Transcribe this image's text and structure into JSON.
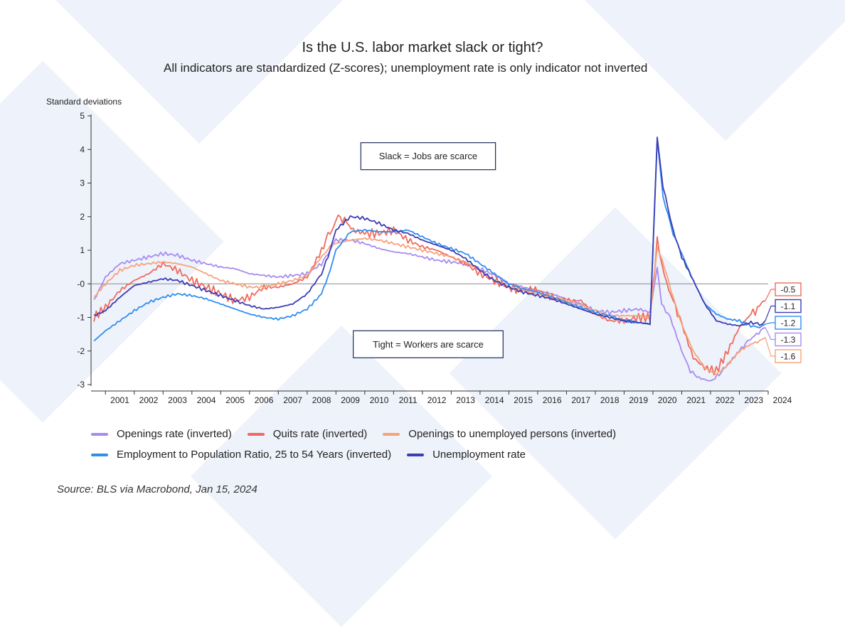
{
  "title": "Is the U.S. labor market slack or tight?",
  "subtitle": "All indicators are standardized (Z-scores); unemployment rate is only indicator not inverted",
  "source": "Source: BLS via Macrobond, Jan 15, 2024",
  "chart_data": {
    "type": "line",
    "ylabel": "Standard deviations",
    "ylim": [
      -3,
      5
    ],
    "xlim": [
      2000.5,
      2024
    ],
    "yticks": [
      5,
      4,
      3,
      2,
      1,
      0,
      -1,
      -2,
      -3
    ],
    "ytick_labels": [
      "5",
      "4",
      "3",
      "2",
      "1",
      "-0",
      "-1",
      "-2",
      "-3"
    ],
    "xtick_labels": [
      "2001",
      "2002",
      "2003",
      "2004",
      "2005",
      "2006",
      "2007",
      "2008",
      "2009",
      "2010",
      "2011",
      "2012",
      "2013",
      "2014",
      "2015",
      "2016",
      "2017",
      "2018",
      "2019",
      "2020",
      "2021",
      "2022",
      "2023",
      "2024"
    ],
    "annotations": [
      {
        "text": "Slack = Jobs are scarce",
        "x": 2012.2,
        "y": 3.8
      },
      {
        "text": "Tight = Workers are scarce",
        "x": 2012.2,
        "y": -1.8
      }
    ],
    "zero_line": true,
    "series": [
      {
        "name": "Openings rate (inverted)",
        "color": "#a78bf0",
        "end_label": "-1.3",
        "end_value": -1.3,
        "points": [
          [
            2000.6,
            -0.5
          ],
          [
            2001.0,
            0.2
          ],
          [
            2001.5,
            0.6
          ],
          [
            2002.0,
            0.7
          ],
          [
            2002.5,
            0.8
          ],
          [
            2003.0,
            0.9
          ],
          [
            2003.5,
            0.85
          ],
          [
            2004.0,
            0.7
          ],
          [
            2004.5,
            0.6
          ],
          [
            2005.0,
            0.5
          ],
          [
            2005.5,
            0.45
          ],
          [
            2006.0,
            0.3
          ],
          [
            2006.5,
            0.25
          ],
          [
            2007.0,
            0.2
          ],
          [
            2007.5,
            0.25
          ],
          [
            2008.0,
            0.3
          ],
          [
            2008.5,
            0.6
          ],
          [
            2008.8,
            1.0
          ],
          [
            2009.0,
            1.3
          ],
          [
            2009.5,
            1.3
          ],
          [
            2010.0,
            1.2
          ],
          [
            2010.5,
            1.05
          ],
          [
            2011.0,
            0.95
          ],
          [
            2011.5,
            0.9
          ],
          [
            2012.0,
            0.8
          ],
          [
            2012.5,
            0.7
          ],
          [
            2013.0,
            0.65
          ],
          [
            2013.5,
            0.6
          ],
          [
            2014.0,
            0.45
          ],
          [
            2014.5,
            0.25
          ],
          [
            2015.0,
            0.0
          ],
          [
            2015.5,
            -0.1
          ],
          [
            2016.0,
            -0.2
          ],
          [
            2016.5,
            -0.3
          ],
          [
            2017.0,
            -0.45
          ],
          [
            2017.5,
            -0.6
          ],
          [
            2018.0,
            -0.8
          ],
          [
            2018.5,
            -0.85
          ],
          [
            2019.0,
            -0.8
          ],
          [
            2019.5,
            -0.75
          ],
          [
            2019.9,
            -0.85
          ],
          [
            2020.15,
            0.5
          ],
          [
            2020.3,
            -0.6
          ],
          [
            2020.6,
            -1.0
          ],
          [
            2021.0,
            -2.0
          ],
          [
            2021.3,
            -2.6
          ],
          [
            2021.6,
            -2.8
          ],
          [
            2022.0,
            -2.9
          ],
          [
            2022.3,
            -2.7
          ],
          [
            2022.6,
            -2.4
          ],
          [
            2023.0,
            -2.0
          ],
          [
            2023.3,
            -1.7
          ],
          [
            2023.6,
            -1.5
          ],
          [
            2023.9,
            -1.3
          ]
        ]
      },
      {
        "name": "Quits rate (inverted)",
        "color": "#ee6a5e",
        "end_label": "-0.5",
        "end_value": -0.5,
        "points": [
          [
            2000.6,
            -1.0
          ],
          [
            2001.0,
            -0.7
          ],
          [
            2001.5,
            -0.2
          ],
          [
            2002.0,
            0.1
          ],
          [
            2002.5,
            0.3
          ],
          [
            2003.0,
            0.6
          ],
          [
            2003.5,
            0.4
          ],
          [
            2004.0,
            0.1
          ],
          [
            2004.5,
            -0.1
          ],
          [
            2005.0,
            -0.3
          ],
          [
            2005.5,
            -0.5
          ],
          [
            2006.0,
            -0.4
          ],
          [
            2006.5,
            -0.1
          ],
          [
            2007.0,
            -0.1
          ],
          [
            2007.5,
            0.0
          ],
          [
            2008.0,
            0.2
          ],
          [
            2008.5,
            1.0
          ],
          [
            2008.8,
            1.6
          ],
          [
            2009.0,
            2.0
          ],
          [
            2009.3,
            1.9
          ],
          [
            2009.6,
            1.6
          ],
          [
            2010.0,
            1.5
          ],
          [
            2010.5,
            1.5
          ],
          [
            2011.0,
            1.6
          ],
          [
            2011.5,
            1.3
          ],
          [
            2012.0,
            1.1
          ],
          [
            2012.5,
            1.0
          ],
          [
            2013.0,
            0.8
          ],
          [
            2013.5,
            0.6
          ],
          [
            2014.0,
            0.3
          ],
          [
            2014.5,
            0.1
          ],
          [
            2015.0,
            -0.1
          ],
          [
            2015.5,
            -0.2
          ],
          [
            2016.0,
            -0.2
          ],
          [
            2016.5,
            -0.4
          ],
          [
            2017.0,
            -0.5
          ],
          [
            2017.5,
            -0.5
          ],
          [
            2018.0,
            -0.9
          ],
          [
            2018.5,
            -1.1
          ],
          [
            2019.0,
            -1.1
          ],
          [
            2019.5,
            -1.0
          ],
          [
            2019.9,
            -1.0
          ],
          [
            2020.15,
            1.3
          ],
          [
            2020.4,
            0.2
          ],
          [
            2020.7,
            -0.5
          ],
          [
            2021.0,
            -1.2
          ],
          [
            2021.4,
            -2.2
          ],
          [
            2021.8,
            -2.5
          ],
          [
            2022.2,
            -2.6
          ],
          [
            2022.6,
            -2.0
          ],
          [
            2023.0,
            -1.3
          ],
          [
            2023.4,
            -0.9
          ],
          [
            2023.7,
            -0.7
          ],
          [
            2023.9,
            -0.5
          ]
        ]
      },
      {
        "name": "Openings to unemployed persons (inverted)",
        "color": "#f7a27a",
        "end_label": "-1.6",
        "end_value": -1.6,
        "points": [
          [
            2000.6,
            -0.4
          ],
          [
            2001.0,
            0.0
          ],
          [
            2001.5,
            0.4
          ],
          [
            2002.0,
            0.55
          ],
          [
            2002.5,
            0.6
          ],
          [
            2003.0,
            0.65
          ],
          [
            2003.5,
            0.6
          ],
          [
            2004.0,
            0.5
          ],
          [
            2004.5,
            0.3
          ],
          [
            2005.0,
            0.1
          ],
          [
            2005.5,
            0.0
          ],
          [
            2006.0,
            -0.1
          ],
          [
            2006.5,
            -0.1
          ],
          [
            2007.0,
            0.0
          ],
          [
            2007.5,
            0.1
          ],
          [
            2008.0,
            0.25
          ],
          [
            2008.5,
            0.8
          ],
          [
            2008.8,
            1.1
          ],
          [
            2009.0,
            1.2
          ],
          [
            2009.5,
            1.3
          ],
          [
            2010.0,
            1.35
          ],
          [
            2010.5,
            1.3
          ],
          [
            2011.0,
            1.2
          ],
          [
            2011.5,
            1.1
          ],
          [
            2012.0,
            1.0
          ],
          [
            2012.5,
            0.9
          ],
          [
            2013.0,
            0.8
          ],
          [
            2013.5,
            0.65
          ],
          [
            2014.0,
            0.4
          ],
          [
            2014.5,
            0.1
          ],
          [
            2015.0,
            -0.1
          ],
          [
            2015.5,
            -0.2
          ],
          [
            2016.0,
            -0.3
          ],
          [
            2016.5,
            -0.4
          ],
          [
            2017.0,
            -0.5
          ],
          [
            2017.5,
            -0.65
          ],
          [
            2018.0,
            -0.8
          ],
          [
            2018.5,
            -0.95
          ],
          [
            2019.0,
            -0.95
          ],
          [
            2019.5,
            -0.95
          ],
          [
            2019.9,
            -1.0
          ],
          [
            2020.15,
            1.1
          ],
          [
            2020.4,
            0.5
          ],
          [
            2020.7,
            -0.4
          ],
          [
            2021.0,
            -1.2
          ],
          [
            2021.4,
            -2.0
          ],
          [
            2021.8,
            -2.5
          ],
          [
            2022.2,
            -2.7
          ],
          [
            2022.6,
            -2.4
          ],
          [
            2023.0,
            -2.0
          ],
          [
            2023.4,
            -1.8
          ],
          [
            2023.7,
            -1.7
          ],
          [
            2023.9,
            -1.6
          ]
        ]
      },
      {
        "name": "Employment to Population Ratio, 25 to 54 Years (inverted)",
        "color": "#2f8ef0",
        "end_label": "-1.2",
        "end_value": -1.2,
        "points": [
          [
            2000.6,
            -1.7
          ],
          [
            2001.0,
            -1.4
          ],
          [
            2001.5,
            -1.1
          ],
          [
            2002.0,
            -0.8
          ],
          [
            2002.5,
            -0.55
          ],
          [
            2003.0,
            -0.4
          ],
          [
            2003.5,
            -0.3
          ],
          [
            2004.0,
            -0.35
          ],
          [
            2004.5,
            -0.45
          ],
          [
            2005.0,
            -0.6
          ],
          [
            2005.5,
            -0.75
          ],
          [
            2006.0,
            -0.9
          ],
          [
            2006.5,
            -1.0
          ],
          [
            2007.0,
            -1.05
          ],
          [
            2007.5,
            -0.95
          ],
          [
            2008.0,
            -0.75
          ],
          [
            2008.5,
            -0.3
          ],
          [
            2008.8,
            0.4
          ],
          [
            2009.0,
            1.0
          ],
          [
            2009.5,
            1.55
          ],
          [
            2010.0,
            1.6
          ],
          [
            2010.5,
            1.55
          ],
          [
            2011.0,
            1.55
          ],
          [
            2011.5,
            1.6
          ],
          [
            2012.0,
            1.4
          ],
          [
            2012.5,
            1.2
          ],
          [
            2013.0,
            1.05
          ],
          [
            2013.5,
            0.9
          ],
          [
            2014.0,
            0.6
          ],
          [
            2014.5,
            0.3
          ],
          [
            2015.0,
            0.0
          ],
          [
            2015.5,
            -0.15
          ],
          [
            2016.0,
            -0.25
          ],
          [
            2016.5,
            -0.4
          ],
          [
            2017.0,
            -0.55
          ],
          [
            2017.5,
            -0.7
          ],
          [
            2018.0,
            -0.85
          ],
          [
            2018.5,
            -0.95
          ],
          [
            2019.0,
            -1.1
          ],
          [
            2019.5,
            -1.15
          ],
          [
            2019.9,
            -1.2
          ],
          [
            2020.15,
            4.3
          ],
          [
            2020.35,
            2.6
          ],
          [
            2020.7,
            1.5
          ],
          [
            2021.0,
            0.9
          ],
          [
            2021.4,
            0.1
          ],
          [
            2021.8,
            -0.6
          ],
          [
            2022.2,
            -0.9
          ],
          [
            2022.6,
            -1.05
          ],
          [
            2023.0,
            -1.1
          ],
          [
            2023.4,
            -1.25
          ],
          [
            2023.7,
            -1.3
          ],
          [
            2023.9,
            -1.2
          ]
        ]
      },
      {
        "name": "Unemployment rate",
        "color": "#3c3cb4",
        "end_label": "-1.1",
        "end_value": -1.1,
        "points": [
          [
            2000.6,
            -0.95
          ],
          [
            2001.0,
            -0.8
          ],
          [
            2001.5,
            -0.4
          ],
          [
            2002.0,
            -0.05
          ],
          [
            2002.5,
            0.05
          ],
          [
            2003.0,
            0.15
          ],
          [
            2003.5,
            0.1
          ],
          [
            2004.0,
            -0.05
          ],
          [
            2004.5,
            -0.2
          ],
          [
            2005.0,
            -0.35
          ],
          [
            2005.5,
            -0.5
          ],
          [
            2006.0,
            -0.65
          ],
          [
            2006.5,
            -0.75
          ],
          [
            2007.0,
            -0.7
          ],
          [
            2007.5,
            -0.6
          ],
          [
            2008.0,
            -0.3
          ],
          [
            2008.5,
            0.3
          ],
          [
            2008.8,
            1.0
          ],
          [
            2009.0,
            1.6
          ],
          [
            2009.5,
            2.0
          ],
          [
            2010.0,
            1.95
          ],
          [
            2010.5,
            1.8
          ],
          [
            2011.0,
            1.6
          ],
          [
            2011.5,
            1.5
          ],
          [
            2012.0,
            1.3
          ],
          [
            2012.5,
            1.15
          ],
          [
            2013.0,
            1.0
          ],
          [
            2013.5,
            0.75
          ],
          [
            2014.0,
            0.4
          ],
          [
            2014.5,
            0.1
          ],
          [
            2015.0,
            -0.1
          ],
          [
            2015.5,
            -0.25
          ],
          [
            2016.0,
            -0.35
          ],
          [
            2016.5,
            -0.45
          ],
          [
            2017.0,
            -0.6
          ],
          [
            2017.5,
            -0.75
          ],
          [
            2018.0,
            -0.9
          ],
          [
            2018.5,
            -1.0
          ],
          [
            2019.0,
            -1.1
          ],
          [
            2019.5,
            -1.15
          ],
          [
            2019.9,
            -1.2
          ],
          [
            2020.15,
            4.4
          ],
          [
            2020.35,
            2.9
          ],
          [
            2020.7,
            1.6
          ],
          [
            2021.0,
            0.8
          ],
          [
            2021.4,
            0.1
          ],
          [
            2021.8,
            -0.6
          ],
          [
            2022.2,
            -1.1
          ],
          [
            2022.6,
            -1.2
          ],
          [
            2023.0,
            -1.25
          ],
          [
            2023.4,
            -1.15
          ],
          [
            2023.7,
            -1.2
          ],
          [
            2023.9,
            -1.1
          ]
        ]
      }
    ]
  }
}
